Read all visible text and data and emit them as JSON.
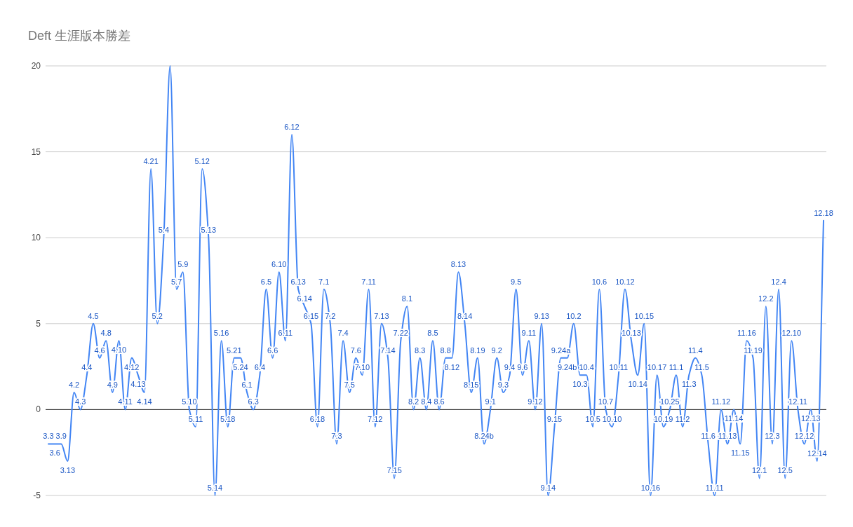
{
  "chart_data": {
    "type": "line",
    "title": "Deft 生涯版本勝差",
    "categories": [
      "3.3",
      "3.6",
      "3.9",
      "3.13",
      "4.2",
      "4.3",
      "4.4",
      "4.5",
      "4.6",
      "4.8",
      "4.9",
      "4.10",
      "4.11",
      "4.12",
      "4.13",
      "4.14",
      "4.21",
      "5.2",
      "5.4",
      null,
      "5.7",
      "5.9",
      "5.10",
      "5.11",
      "5.12",
      "5.13",
      "5.14",
      "5.16",
      "5.18",
      "5.21",
      "5.24",
      "6.1",
      "6.3",
      "6.4",
      "6.5",
      "6.6",
      "6.10",
      "6.11",
      "6.12",
      "6.13",
      "6.14",
      "6.15",
      "6.18",
      "7.1",
      "7.2",
      "7.3",
      "7.4",
      "7.5",
      "7.6",
      "7.10",
      "7.11",
      "7.12",
      "7.13",
      "7.14",
      "7.15",
      "7.22",
      "8.1",
      "8.2",
      "8.3",
      "8.4",
      "8.5",
      "8.6",
      "8.8",
      "8.12",
      "8.13",
      "8.14",
      "8.15",
      "8.19",
      "8.24b",
      "9.1",
      "9.2",
      "9.3",
      "9.4",
      "9.5",
      "9.6",
      "9.11",
      "9.12",
      "9.13",
      "9.14",
      "9.15",
      "9.24a",
      "9.24b",
      "10.2",
      "10.3",
      "10.4",
      "10.5",
      "10.6",
      "10.7",
      "10.10",
      "10.11",
      "10.12",
      "10.13",
      "10.14",
      "10.15",
      "10.16",
      "10.17",
      "10.19",
      "10.25",
      "11.1",
      "11.2",
      "11.3",
      "11.4",
      "11.5",
      "11.6",
      "11.11",
      "11.12",
      "11.13",
      "11.14",
      "11.15",
      "11.16",
      "11.19",
      "12.1",
      "12.2",
      "12.3",
      "12.4",
      "12.5",
      "12.10",
      "12.11",
      "12.12",
      "12.13",
      "12.14",
      "12.18"
    ],
    "series": [
      {
        "color": "#4285f4",
        "values": [
          -2,
          -2,
          -2,
          -3,
          1,
          0,
          2,
          5,
          3,
          4,
          1,
          4,
          0,
          3,
          2,
          1,
          14,
          5,
          10,
          20,
          7,
          8,
          0,
          -1,
          14,
          10,
          -5,
          4,
          -1,
          3,
          3,
          1,
          0,
          2,
          7,
          3,
          8,
          4,
          16,
          7,
          6,
          5,
          -1,
          7,
          5,
          -2,
          4,
          1,
          3,
          2,
          7,
          -1,
          5,
          3,
          -4,
          4,
          6,
          0,
          3,
          0,
          4,
          0,
          3,
          3,
          8,
          5,
          1,
          3,
          -2,
          0,
          3,
          1,
          2,
          7,
          2,
          4,
          0,
          5,
          -5,
          -1,
          3,
          3,
          5,
          2,
          2,
          -1,
          7,
          0,
          -1,
          2,
          7,
          4,
          2,
          5,
          -5,
          2,
          -1,
          0,
          2,
          -1,
          2,
          3,
          2,
          -2,
          -5,
          0,
          -2,
          0,
          -2,
          4,
          3,
          -4,
          6,
          -2,
          7,
          -4,
          4,
          0,
          -2,
          0,
          -3,
          11
        ]
      }
    ],
    "ylim": [
      -5,
      20
    ],
    "yticks": [
      -5,
      0,
      5,
      10,
      15,
      20
    ],
    "grid": "y"
  }
}
